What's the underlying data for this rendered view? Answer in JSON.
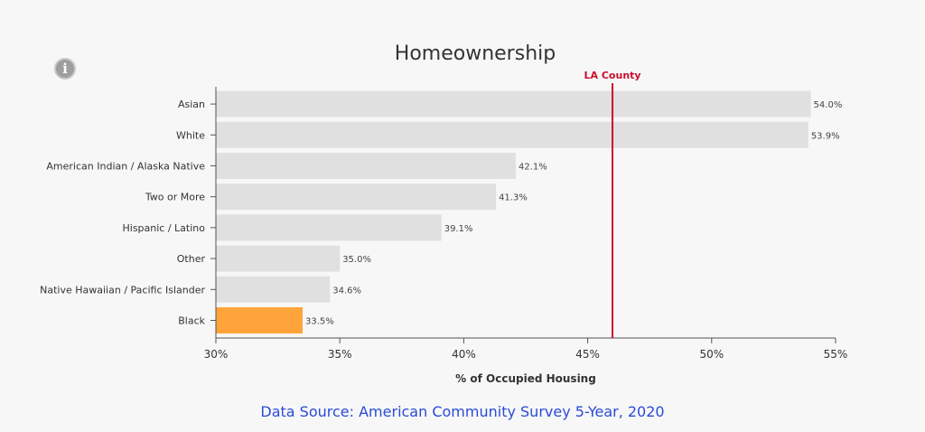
{
  "info_icon": {
    "name": "info-icon",
    "glyph": "i"
  },
  "source_text": "Data Source: American Community Survey 5-Year, 2020",
  "chart_data": {
    "type": "bar",
    "orientation": "horizontal",
    "title": "Homeownership",
    "xlabel": "% of Occupied Housing",
    "ylabel": "",
    "xlim": [
      30,
      55
    ],
    "xticks": [
      30,
      35,
      40,
      45,
      50,
      55
    ],
    "xtick_labels": [
      "30%",
      "35%",
      "40%",
      "45%",
      "50%",
      "55%"
    ],
    "categories": [
      "Asian",
      "White",
      "American Indian / Alaska Native",
      "Two or More",
      "Hispanic / Latino",
      "Other",
      "Native Hawaiian / Pacific Islander",
      "Black"
    ],
    "values": [
      54.0,
      53.9,
      42.1,
      41.3,
      39.1,
      35.0,
      34.6,
      33.5
    ],
    "value_labels": [
      "54.0%",
      "53.9%",
      "42.1%",
      "41.3%",
      "39.1%",
      "35.0%",
      "34.6%",
      "33.5%"
    ],
    "highlight_category": "Black",
    "bar_color": "#e0e0e0",
    "highlight_color": "#ffa43a",
    "reference_line": {
      "label": "LA County",
      "value": 46,
      "color": "#c8102e"
    },
    "grid": false
  }
}
